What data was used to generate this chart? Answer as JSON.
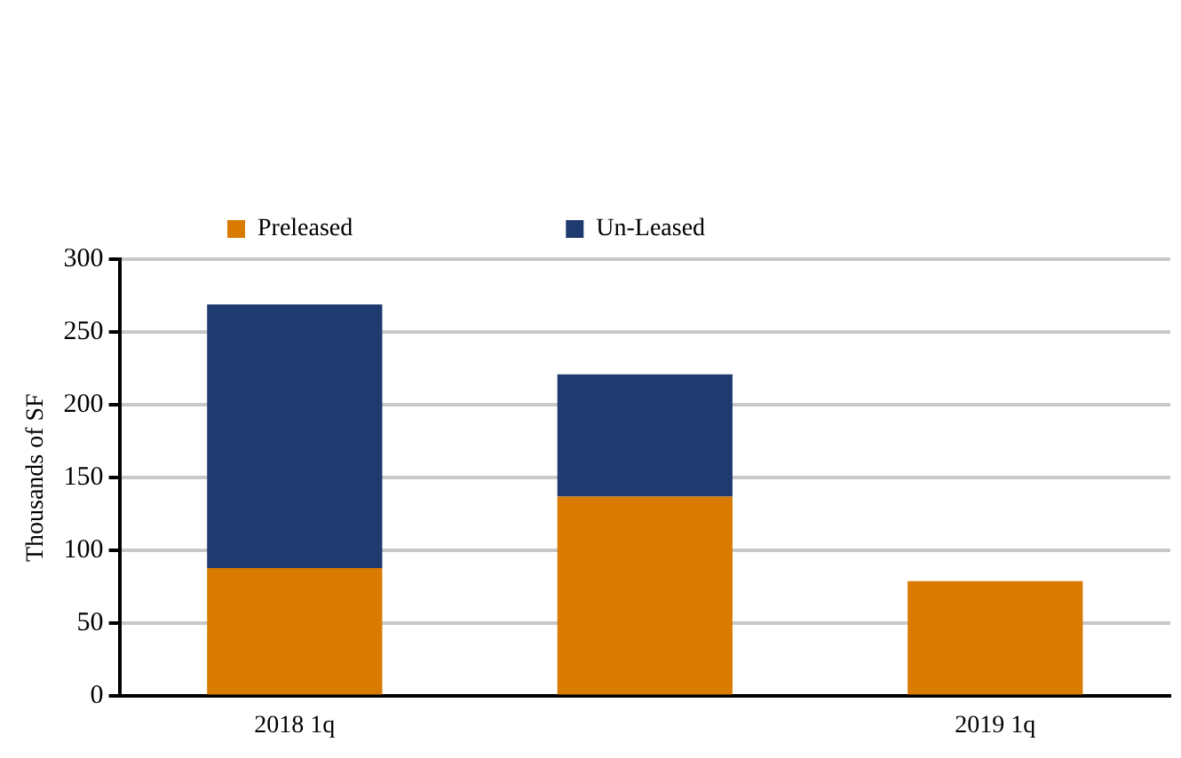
{
  "chart_data": {
    "type": "bar",
    "ylabel": "Thousands of SF",
    "categories": [
      "2018 1q",
      null,
      "2019 1q"
    ],
    "stacked": true,
    "series": [
      {
        "name": "Preleased",
        "color": "#d97b00",
        "values": [
          88,
          137,
          79
        ]
      },
      {
        "name": "Un-Leased",
        "color": "#1f3a6e",
        "values": [
          181,
          84,
          0
        ]
      }
    ],
    "ylim": [
      0,
      300
    ],
    "yticks": [
      0,
      50,
      100,
      150,
      200,
      250,
      300
    ],
    "grid": "y",
    "legend": "top left"
  }
}
